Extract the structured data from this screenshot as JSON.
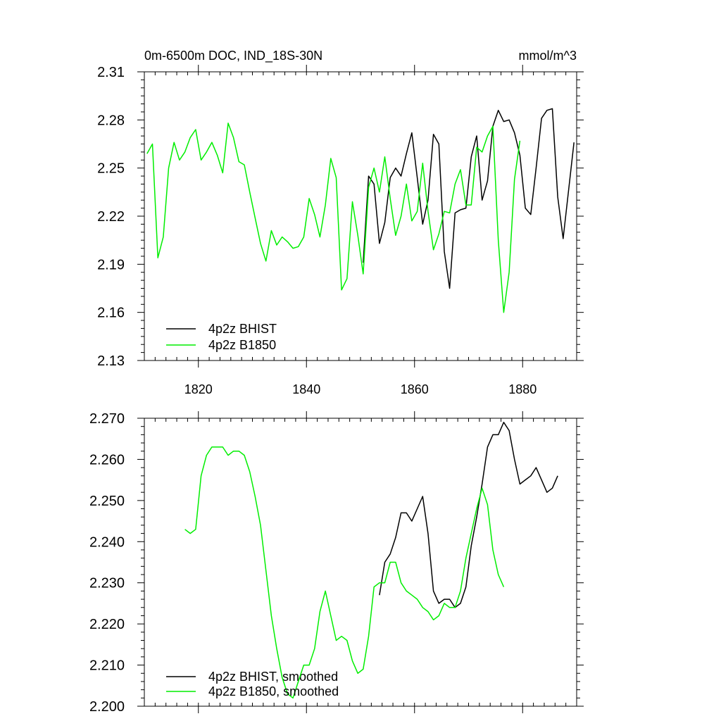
{
  "chart_data": [
    {
      "type": "line",
      "title": "0m-6500m DOC, IND_18S-30N",
      "units": "mmol/m^3",
      "xlabel": "",
      "ylabel": "",
      "xlim": [
        1810,
        1890
      ],
      "ylim": [
        2.13,
        2.31
      ],
      "xticks": [
        1820,
        1840,
        1860,
        1880
      ],
      "xtick_labels": [
        "1820",
        "1840",
        "1860",
        "1880"
      ],
      "yticks": [
        2.13,
        2.16,
        2.19,
        2.22,
        2.25,
        2.28,
        2.31
      ],
      "ytick_labels": [
        "2.13",
        "2.16",
        "2.19",
        "2.22",
        "2.25",
        "2.28",
        "2.31"
      ],
      "legend_position": "bottom-left",
      "series": [
        {
          "name": "4p2z BHIST",
          "color": "#000000",
          "x": [
            1850.5,
            1851.5,
            1852.5,
            1853.5,
            1854.5,
            1855.5,
            1856.5,
            1857.5,
            1858.5,
            1859.5,
            1860.5,
            1861.5,
            1862.5,
            1863.5,
            1864.5,
            1865.5,
            1866.5,
            1867.5,
            1868.5,
            1869.5,
            1870.5,
            1871.5,
            1872.5,
            1873.5,
            1874.5,
            1875.5,
            1876.5,
            1877.5,
            1878.5,
            1879.5,
            1880.5,
            1881.5,
            1882.5,
            1883.5,
            1884.5,
            1885.5,
            1886.5,
            1887.5,
            1888.5,
            1889.5
          ],
          "y": [
            2.191,
            2.245,
            2.24,
            2.203,
            2.216,
            2.244,
            2.25,
            2.245,
            2.259,
            2.272,
            2.244,
            2.215,
            2.23,
            2.271,
            2.265,
            2.198,
            2.175,
            2.222,
            2.224,
            2.225,
            2.257,
            2.27,
            2.23,
            2.242,
            2.276,
            2.286,
            2.279,
            2.28,
            2.272,
            2.258,
            2.225,
            2.221,
            2.25,
            2.281,
            2.286,
            2.287,
            2.232,
            2.206,
            2.236,
            2.266
          ]
        },
        {
          "name": "4p2z B1850",
          "color": "#00ee00",
          "x": [
            1810.5,
            1811.5,
            1812.5,
            1813.5,
            1814.5,
            1815.5,
            1816.5,
            1817.5,
            1818.5,
            1819.5,
            1820.5,
            1821.5,
            1822.5,
            1823.5,
            1824.5,
            1825.5,
            1826.5,
            1827.5,
            1828.5,
            1829.5,
            1830.5,
            1831.5,
            1832.5,
            1833.5,
            1834.5,
            1835.5,
            1836.5,
            1837.5,
            1838.5,
            1839.5,
            1840.5,
            1841.5,
            1842.5,
            1843.5,
            1844.5,
            1845.5,
            1846.5,
            1847.5,
            1848.5,
            1849.5,
            1850.5,
            1851.5,
            1852.5,
            1853.5,
            1854.5,
            1855.5,
            1856.5,
            1857.5,
            1858.5,
            1859.5,
            1860.5,
            1861.5,
            1862.5,
            1863.5,
            1864.5,
            1865.5,
            1866.5,
            1867.5,
            1868.5,
            1869.5,
            1870.5,
            1871.5,
            1872.5,
            1873.5,
            1874.5,
            1875.5,
            1876.5,
            1877.5,
            1878.5,
            1879.5
          ],
          "y": [
            2.259,
            2.265,
            2.194,
            2.207,
            2.25,
            2.266,
            2.255,
            2.26,
            2.269,
            2.274,
            2.255,
            2.26,
            2.266,
            2.258,
            2.247,
            2.278,
            2.269,
            2.254,
            2.252,
            2.235,
            2.219,
            2.203,
            2.192,
            2.211,
            2.202,
            2.207,
            2.204,
            2.2,
            2.201,
            2.207,
            2.231,
            2.221,
            2.207,
            2.227,
            2.256,
            2.244,
            2.174,
            2.181,
            2.229,
            2.208,
            2.184,
            2.238,
            2.25,
            2.235,
            2.257,
            2.231,
            2.208,
            2.22,
            2.24,
            2.217,
            2.223,
            2.253,
            2.223,
            2.199,
            2.209,
            2.223,
            2.222,
            2.24,
            2.249,
            2.227,
            2.227,
            2.263,
            2.26,
            2.27,
            2.276,
            2.205,
            2.16,
            2.185,
            2.243,
            2.267
          ]
        }
      ]
    },
    {
      "type": "line",
      "title": "",
      "xlabel": "",
      "ylabel": "",
      "xlim": [
        1810,
        1890
      ],
      "ylim": [
        2.2,
        2.27
      ],
      "xticks": [
        1820,
        1840,
        1860,
        1880
      ],
      "xtick_labels": [],
      "yticks": [
        2.2,
        2.21,
        2.22,
        2.23,
        2.24,
        2.25,
        2.26,
        2.27
      ],
      "ytick_labels": [
        "2.200",
        "2.210",
        "2.220",
        "2.230",
        "2.240",
        "2.250",
        "2.260",
        "2.270"
      ],
      "legend_position": "bottom-left",
      "series": [
        {
          "name": "4p2z BHIST, smoothed",
          "color": "#000000",
          "x": [
            1853.5,
            1854.5,
            1855.5,
            1856.5,
            1857.5,
            1858.5,
            1859.5,
            1860.5,
            1861.5,
            1862.5,
            1863.5,
            1864.5,
            1865.5,
            1866.5,
            1867.5,
            1868.5,
            1869.5,
            1870.5,
            1871.5,
            1872.5,
            1873.5,
            1874.5,
            1875.5,
            1876.5,
            1877.5,
            1878.5,
            1879.5,
            1880.5,
            1881.5,
            1882.5,
            1883.5,
            1884.5,
            1885.5,
            1886.5
          ],
          "y": [
            2.227,
            2.235,
            2.237,
            2.241,
            2.247,
            2.247,
            2.245,
            2.248,
            2.251,
            2.242,
            2.228,
            2.225,
            2.226,
            2.226,
            2.224,
            2.225,
            2.229,
            2.239,
            2.246,
            2.254,
            2.263,
            2.266,
            2.266,
            2.269,
            2.267,
            2.26,
            2.254,
            2.255,
            2.256,
            2.258,
            2.255,
            2.252,
            2.253,
            2.256
          ]
        },
        {
          "name": "4p2z B1850, smoothed",
          "color": "#00ee00",
          "x": [
            1817.5,
            1818.5,
            1819.5,
            1820.5,
            1821.5,
            1822.5,
            1823.5,
            1824.5,
            1825.5,
            1826.5,
            1827.5,
            1828.5,
            1829.5,
            1830.5,
            1831.5,
            1832.5,
            1833.5,
            1834.5,
            1835.5,
            1836.5,
            1837.5,
            1838.5,
            1839.5,
            1840.5,
            1841.5,
            1842.5,
            1843.5,
            1844.5,
            1845.5,
            1846.5,
            1847.5,
            1848.5,
            1849.5,
            1850.5,
            1851.5,
            1852.5,
            1853.5,
            1854.5,
            1855.5,
            1856.5,
            1857.5,
            1858.5,
            1859.5,
            1860.5,
            1861.5,
            1862.5,
            1863.5,
            1864.5,
            1865.5,
            1866.5,
            1867.5,
            1868.5,
            1869.5,
            1870.5,
            1871.5,
            1872.5,
            1873.5,
            1874.5,
            1875.5,
            1876.5
          ],
          "y": [
            2.243,
            2.242,
            2.243,
            2.256,
            2.261,
            2.263,
            2.263,
            2.263,
            2.261,
            2.262,
            2.262,
            2.261,
            2.257,
            2.251,
            2.244,
            2.233,
            2.222,
            2.214,
            2.207,
            2.203,
            2.202,
            2.206,
            2.21,
            2.21,
            2.214,
            2.223,
            2.228,
            2.222,
            2.216,
            2.217,
            2.216,
            2.211,
            2.208,
            2.209,
            2.217,
            2.229,
            2.23,
            2.23,
            2.235,
            2.235,
            2.23,
            2.228,
            2.227,
            2.226,
            2.224,
            2.223,
            2.221,
            2.222,
            2.225,
            2.224,
            2.224,
            2.228,
            2.236,
            2.242,
            2.248,
            2.253,
            2.249,
            2.238,
            2.232,
            2.229
          ]
        }
      ]
    }
  ]
}
